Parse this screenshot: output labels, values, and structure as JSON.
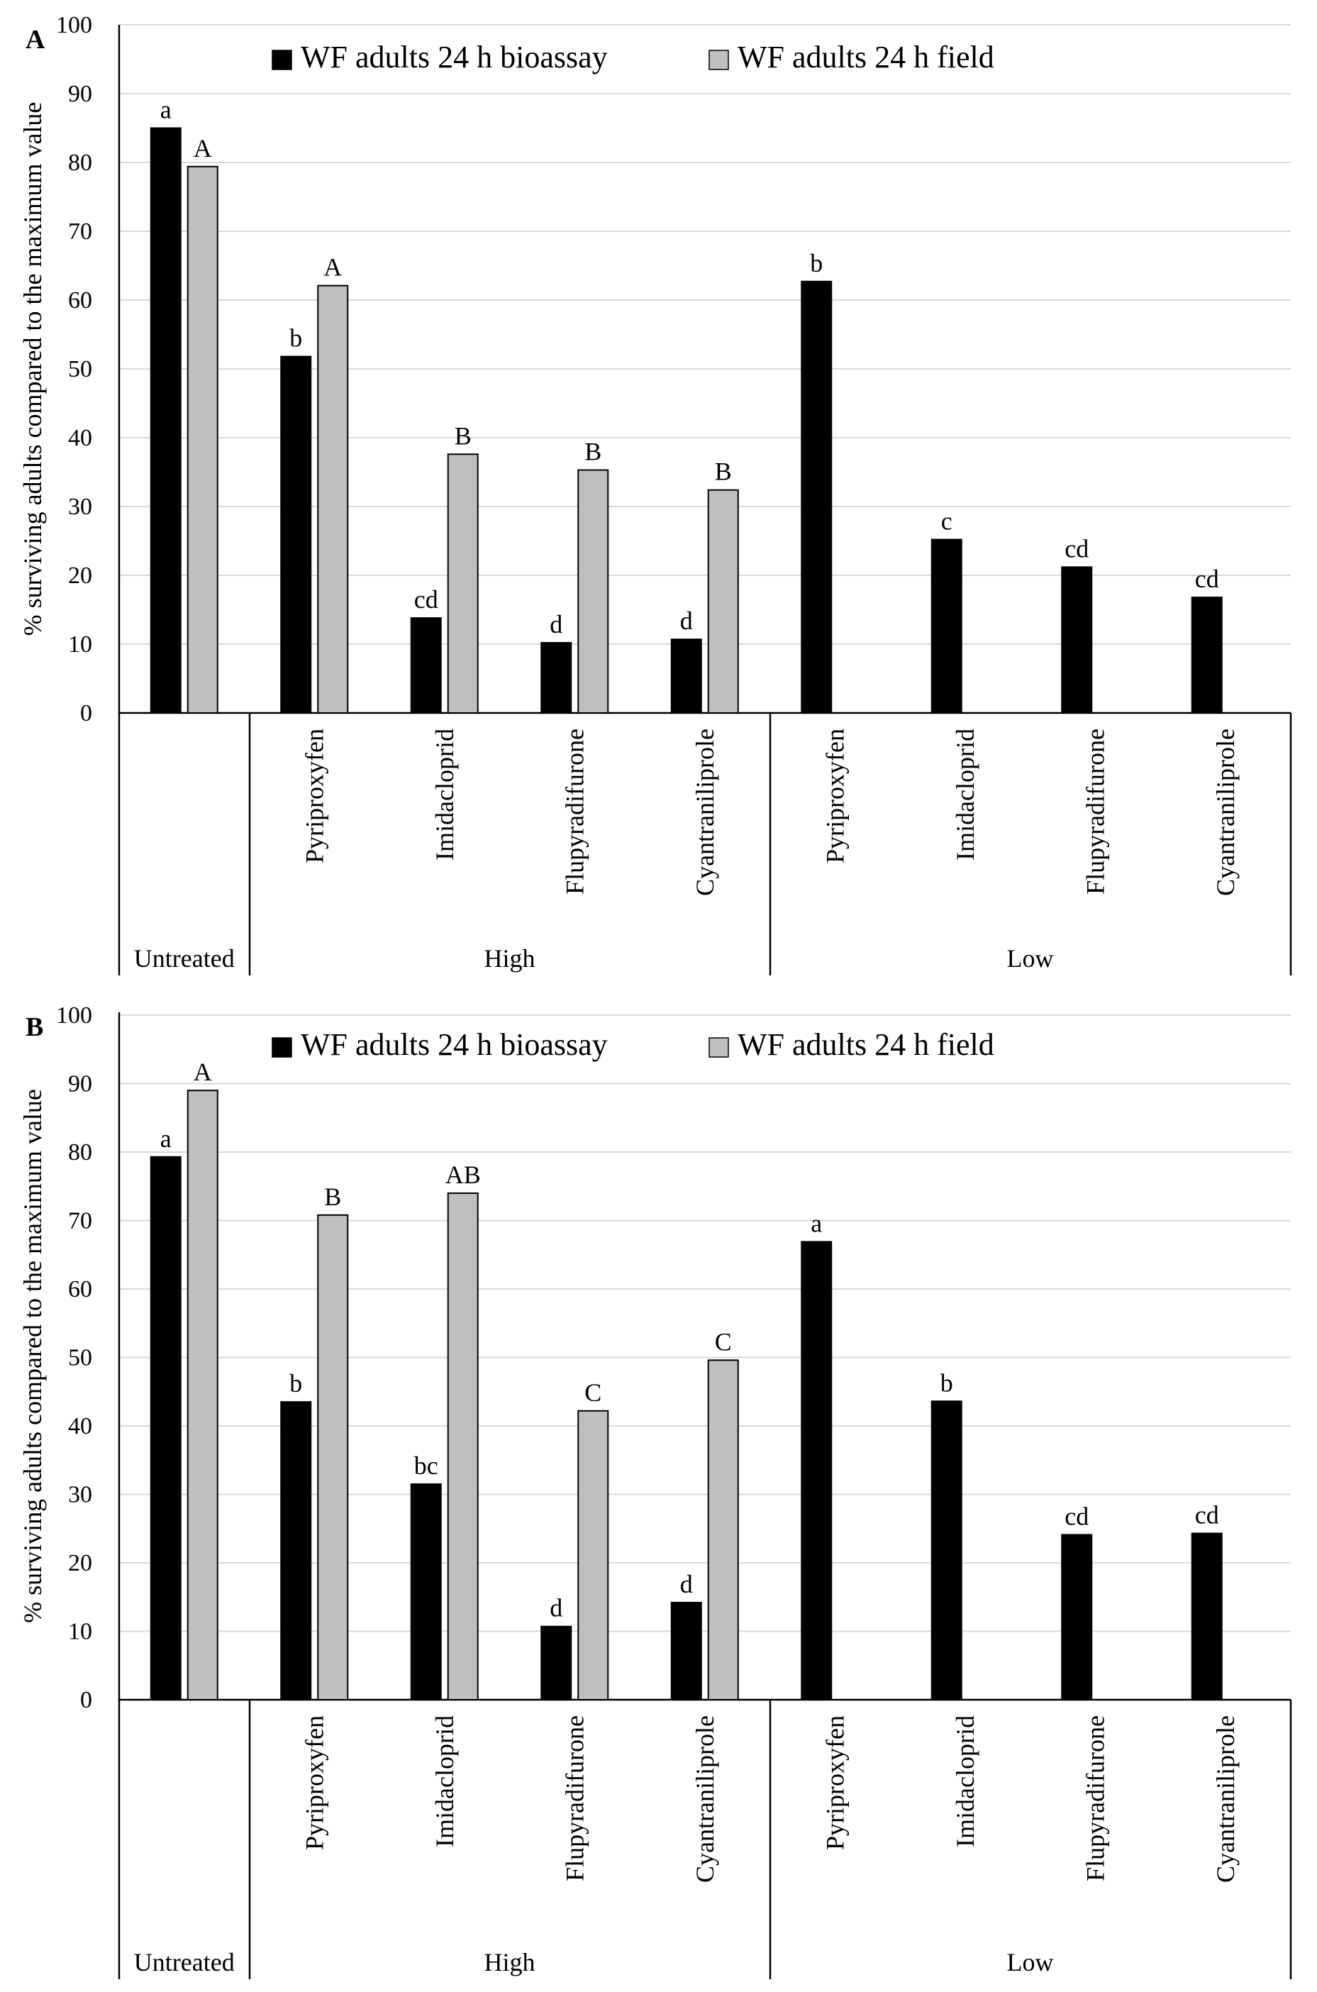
{
  "legend": {
    "series_0": "WF adults 24 h bioassay",
    "series_1": "WF adults 24 h field"
  },
  "colors": {
    "bioassay": "#000000",
    "field": "#bfbfbf",
    "grid": "#d9d9d9",
    "axis": "#000000"
  },
  "chart_data": [
    {
      "type": "bar",
      "panel_label": "A",
      "ylabel": "% surviving adults compared to the maximum value",
      "ylim": [
        0,
        100
      ],
      "yticks": [
        0,
        10,
        20,
        30,
        40,
        50,
        60,
        70,
        80,
        90,
        100
      ],
      "grid": true,
      "legend_position": "top-center",
      "categories": [
        "",
        "Pyriproxyfen",
        "Imidacloprid",
        "Flupyradifurone",
        "Cyantraniliprole",
        "Pyriproxyfen",
        "Imidacloprid",
        "Flupyradifurone",
        "Cyantraniliprole"
      ],
      "groups": [
        {
          "label": "Untreated",
          "start": 0,
          "count": 1
        },
        {
          "label": "High",
          "start": 1,
          "count": 4
        },
        {
          "label": "Low",
          "start": 5,
          "count": 4
        }
      ],
      "series": [
        {
          "name": "WF adults 24 h bioassay",
          "values": [
            85,
            51.8,
            13.8,
            10.2,
            10.7,
            62.7,
            25.2,
            21.2,
            16.8
          ],
          "letters": [
            "a",
            "b",
            "cd",
            "d",
            "d",
            "b",
            "c",
            "cd",
            "cd"
          ]
        },
        {
          "name": "WF adults 24 h field",
          "values": [
            79.4,
            62.1,
            37.6,
            35.3,
            32.4,
            null,
            null,
            null,
            null
          ],
          "letters": [
            "A",
            "A",
            "B",
            "B",
            "B",
            "",
            "",
            "",
            ""
          ]
        }
      ]
    },
    {
      "type": "bar",
      "panel_label": "B",
      "ylabel": "% surviving adults compared to the maximum value",
      "ylim": [
        0,
        100
      ],
      "yticks": [
        0,
        10,
        20,
        30,
        40,
        50,
        60,
        70,
        80,
        90,
        100
      ],
      "grid": true,
      "legend_position": "top-center",
      "categories": [
        "",
        "Pyriproxyfen",
        "Imidacloprid",
        "Flupyradifurone",
        "Cyantraniliprole",
        "Pyriproxyfen",
        "Imidacloprid",
        "Flupyradifurone",
        "Cyantraniliprole"
      ],
      "groups": [
        {
          "label": "Untreated",
          "start": 0,
          "count": 1
        },
        {
          "label": "High",
          "start": 1,
          "count": 4
        },
        {
          "label": "Low",
          "start": 5,
          "count": 4
        }
      ],
      "series": [
        {
          "name": "WF adults 24 h bioassay",
          "values": [
            79.3,
            43.5,
            31.5,
            10.7,
            14.2,
            66.9,
            43.6,
            24.1,
            24.3
          ],
          "letters": [
            "a",
            "b",
            "bc",
            "d",
            "d",
            "a",
            "b",
            "cd",
            "cd"
          ]
        },
        {
          "name": "WF adults 24 h field",
          "values": [
            89.0,
            70.8,
            74.0,
            42.2,
            49.6,
            null,
            null,
            null,
            null
          ],
          "letters": [
            "A",
            "B",
            "AB",
            "C",
            "C",
            "",
            "",
            "",
            ""
          ]
        }
      ]
    }
  ]
}
